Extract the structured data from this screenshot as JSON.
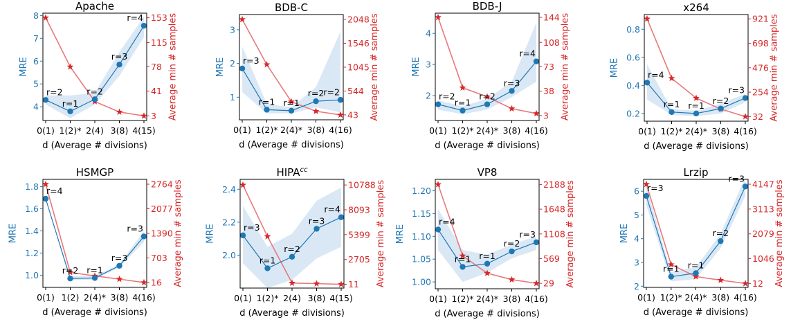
{
  "figure": {
    "xlabel": "d (Average # divisions)",
    "ylabel_left": "MRE",
    "ylabel_right": "Average min # samples"
  },
  "colors": {
    "mre": "#1f77b4",
    "samples": "#e8797b",
    "samples_axis": "#d62728",
    "band": "#c6dcef",
    "text": "#000000"
  },
  "chart_data": [
    {
      "type": "line",
      "title": "Apache",
      "categories": [
        "0(1)",
        "1(2)*",
        "2(4)",
        "3(8)",
        "4(15)"
      ],
      "mre": [
        4.3,
        3.8,
        4.33,
        5.85,
        7.55
      ],
      "mre_band_low": [
        4.1,
        3.5,
        4.1,
        5.35,
        7.05
      ],
      "mre_band_high": [
        4.5,
        4.5,
        4.6,
        6.4,
        7.95
      ],
      "mre_labels": [
        "r=2",
        "r=1",
        "r=2",
        "r=3",
        "r=4"
      ],
      "ylim": [
        3.4,
        8.1
      ],
      "yticks": [
        4,
        5,
        6,
        7,
        8
      ],
      "ytick_labels": [
        "4",
        "5",
        "6",
        "7",
        "8"
      ],
      "samples": [
        153,
        78,
        25,
        9,
        3
      ],
      "y2lim": [
        -4,
        160
      ],
      "y2ticks": [
        3,
        41,
        78,
        115,
        153
      ],
      "y2tick_labels": [
        "3",
        "41",
        "78",
        "115",
        "153"
      ]
    },
    {
      "type": "line",
      "title": "BDB-C",
      "categories": [
        "0(1)",
        "1(2)*",
        "2(4)*",
        "3(8)",
        "4(16)"
      ],
      "mre": [
        1.85,
        0.63,
        0.6,
        0.88,
        0.92
      ],
      "mre_band_low": [
        1.15,
        0.52,
        0.52,
        0.7,
        0.55
      ],
      "mre_band_high": [
        2.5,
        0.8,
        0.7,
        1.3,
        2.95
      ],
      "mre_labels": [
        "r=3",
        "r=1",
        "r=1",
        "r=2",
        "r=2"
      ],
      "ylim": [
        0.33,
        3.45
      ],
      "yticks": [
        1,
        2,
        3
      ],
      "ytick_labels": [
        "1",
        "2",
        "3"
      ],
      "samples": [
        2048,
        1100,
        320,
        120,
        43
      ],
      "y2lim": [
        -60,
        2150
      ],
      "y2ticks": [
        43,
        544,
        1045,
        1546,
        2048
      ],
      "y2tick_labels": [
        "43",
        "544",
        "1045",
        "1546",
        "2048"
      ]
    },
    {
      "type": "line",
      "title": "BDB-J",
      "categories": [
        "0(1)",
        "1(2)*",
        "2(4)*",
        "3(8)",
        "4(16)"
      ],
      "mre": [
        1.72,
        1.52,
        1.72,
        2.15,
        3.1
      ],
      "mre_band_low": [
        1.55,
        1.4,
        1.55,
        1.95,
        2.45
      ],
      "mre_band_high": [
        1.85,
        1.65,
        1.9,
        2.45,
        4.35
      ],
      "mre_labels": [
        "r=2",
        "r=1",
        "r=2",
        "r=3",
        "r=4"
      ],
      "ylim": [
        1.2,
        4.65
      ],
      "yticks": [
        2,
        3,
        4
      ],
      "ytick_labels": [
        "2",
        "3",
        "4"
      ],
      "samples": [
        144,
        43,
        30,
        13,
        6
      ],
      "y2lim": [
        -4,
        150
      ],
      "y2ticks": [
        3,
        38,
        73,
        108,
        144
      ],
      "y2tick_labels": [
        "3",
        "38",
        "73",
        "108",
        "144"
      ]
    },
    {
      "type": "line",
      "title": "x264",
      "categories": [
        "0(1)",
        "1(2)*",
        "2(4)*",
        "3(8)",
        "4(16)"
      ],
      "mre": [
        0.42,
        0.21,
        0.2,
        0.235,
        0.31
      ],
      "mre_band_low": [
        0.3,
        0.19,
        0.18,
        0.2,
        0.28
      ],
      "mre_band_high": [
        0.55,
        0.23,
        0.22,
        0.27,
        0.34
      ],
      "mre_labels": [
        "r=4",
        "r=1",
        "r=1",
        "r=2",
        "r=3"
      ],
      "ylim": [
        0.145,
        0.905
      ],
      "yticks": [
        0.2,
        0.4,
        0.6,
        0.8
      ],
      "ytick_labels": [
        "0.2",
        "0.4",
        "0.6",
        "0.8"
      ],
      "samples": [
        921,
        380,
        200,
        100,
        32
      ],
      "y2lim": [
        -10,
        960
      ],
      "y2ticks": [
        32,
        254,
        476,
        698,
        921
      ],
      "y2tick_labels": [
        "32",
        "254",
        "476",
        "698",
        "921"
      ]
    },
    {
      "type": "line",
      "title": "HSMGP",
      "categories": [
        "0(1)",
        "1(2)",
        "2(4)*",
        "3(8)",
        "4(16)"
      ],
      "mre": [
        1.69,
        0.97,
        0.975,
        1.085,
        1.35
      ],
      "mre_band_low": [
        1.69,
        0.955,
        0.96,
        1.07,
        1.3
      ],
      "mre_band_high": [
        1.69,
        0.99,
        0.99,
        1.1,
        1.4
      ],
      "mre_labels": [
        "r=4",
        "r=2",
        "r=1",
        "r=3",
        "r=3"
      ],
      "ylim": [
        0.89,
        1.865
      ],
      "yticks": [
        1.0,
        1.2,
        1.4,
        1.6,
        1.8
      ],
      "ytick_labels": [
        "1.0",
        "1.2",
        "1.4",
        "1.6",
        "1.8"
      ],
      "samples": [
        2764,
        300,
        200,
        110,
        16
      ],
      "y2lim": [
        -120,
        2900
      ],
      "y2ticks": [
        16,
        703,
        1390,
        2077,
        2764
      ],
      "y2tick_labels": [
        "16",
        "703",
        "1390",
        "2077",
        "2764"
      ]
    },
    {
      "type": "line",
      "title": "HIPAcc",
      "categories": [
        "0(1)",
        "1(2)*",
        "2(4)",
        "3(8)",
        "4(15)"
      ],
      "mre": [
        2.12,
        1.92,
        1.99,
        2.16,
        2.23
      ],
      "mre_band_low": [
        1.95,
        1.8,
        1.85,
        1.98,
        2.05
      ],
      "mre_band_high": [
        2.3,
        2.05,
        2.13,
        2.33,
        2.41
      ],
      "mre_labels": [
        "r=3",
        "r=1",
        "r=2",
        "r=3",
        "r=4"
      ],
      "ylim": [
        1.8,
        2.46
      ],
      "yticks": [
        2.0,
        2.2,
        2.4
      ],
      "ytick_labels": [
        "2.0",
        "2.2",
        "2.4"
      ],
      "samples": [
        10788,
        5200,
        150,
        80,
        11
      ],
      "y2lim": [
        -400,
        11400
      ],
      "y2ticks": [
        11,
        2705,
        5399,
        8093,
        10788
      ],
      "y2tick_labels": [
        "11",
        "2705",
        "5399",
        "8093",
        "10788"
      ]
    },
    {
      "type": "line",
      "title": "VP8",
      "categories": [
        "0(1)",
        "1(2)*",
        "2(4)*",
        "3(8)",
        "4(16)"
      ],
      "mre": [
        1.115,
        1.033,
        1.04,
        1.067,
        1.087
      ],
      "mre_band_low": [
        1.07,
        1.0,
        1.02,
        1.052,
        1.07
      ],
      "mre_band_high": [
        1.16,
        1.07,
        1.06,
        1.082,
        1.1
      ],
      "mre_labels": [
        "r=4",
        "r=1",
        "r=1",
        "r=2",
        "r=3"
      ],
      "ylim": [
        0.985,
        1.225
      ],
      "yticks": [
        1.0,
        1.05,
        1.1,
        1.15,
        1.2
      ],
      "ytick_labels": [
        "1.00",
        "1.05",
        "1.10",
        "1.15",
        "1.20"
      ],
      "samples": [
        2188,
        630,
        250,
        110,
        29
      ],
      "y2lim": [
        -90,
        2300
      ],
      "y2ticks": [
        29,
        569,
        1108,
        1648,
        2188
      ],
      "y2tick_labels": [
        "29",
        "569",
        "1108",
        "1648",
        "2188"
      ]
    },
    {
      "type": "line",
      "title": "Lrzip",
      "categories": [
        "0(1)",
        "1(2)*",
        "2(4)*",
        "3(8)",
        "4(16)"
      ],
      "mre": [
        5.8,
        2.4,
        2.55,
        3.9,
        6.2
      ],
      "mre_band_low": [
        5.4,
        2.2,
        2.3,
        3.6,
        5.8
      ],
      "mre_band_high": [
        6.2,
        2.6,
        2.8,
        4.2,
        6.6
      ],
      "mre_labels": [
        "r=3",
        "r=1",
        "r=1",
        "r=2",
        "r=3"
      ],
      "ylim": [
        1.95,
        6.5
      ],
      "yticks": [
        2,
        3,
        4,
        5,
        6
      ],
      "ytick_labels": [
        "2",
        "3",
        "4",
        "5",
        "6"
      ],
      "samples": [
        4147,
        800,
        300,
        150,
        12
      ],
      "y2lim": [
        -150,
        4350
      ],
      "y2ticks": [
        12,
        1046,
        2079,
        3113,
        4147
      ],
      "y2tick_labels": [
        "12",
        "1046",
        "2079",
        "3113",
        "4147"
      ]
    }
  ]
}
